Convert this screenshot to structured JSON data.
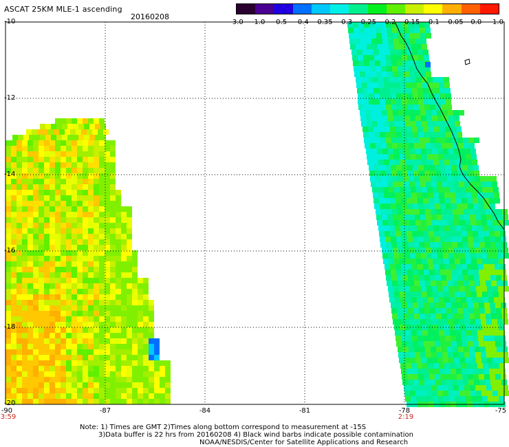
{
  "header": {
    "title": "ASCAT 25KM MLE-1 ascending",
    "date": "20160208"
  },
  "colorbar": {
    "labels": [
      "-3.0",
      "-1.0",
      "-0.5",
      "-0.4",
      "-0.35",
      "-0.3",
      "-0.25",
      "-0.2",
      "-0.15",
      "-0.1",
      "-0.05",
      "0.0",
      "1.0"
    ],
    "colors": [
      "#2a0030",
      "#4a0090",
      "#2000e0",
      "#0070ff",
      "#00c8ff",
      "#00f0e8",
      "#00f090",
      "#00f020",
      "#60f000",
      "#c8f000",
      "#ffff00",
      "#ffb000",
      "#ff6000",
      "#ff1800"
    ]
  },
  "axes": {
    "lat_labels": [
      "-10",
      "-12",
      "-14",
      "-16",
      "-18",
      "-20"
    ],
    "lon_labels": [
      "-90",
      "-87",
      "-84",
      "-81",
      "-78",
      "-75"
    ],
    "time_labels": [
      "3:59",
      "2:19"
    ]
  },
  "notes": {
    "line1": "Note: 1) Times are GMT 2)Times along bottom correspond to measurement at -15S",
    "line2": "3)Data buffer is 22 hrs from 20160208 4) Black wind barbs indicate possible contamination",
    "line3": "NOAA/NESDIS/Center for Satellite Applications and Research"
  },
  "colors": {
    "grid": "#000000",
    "time_label": "#c8281e",
    "coastline": "#000000"
  }
}
